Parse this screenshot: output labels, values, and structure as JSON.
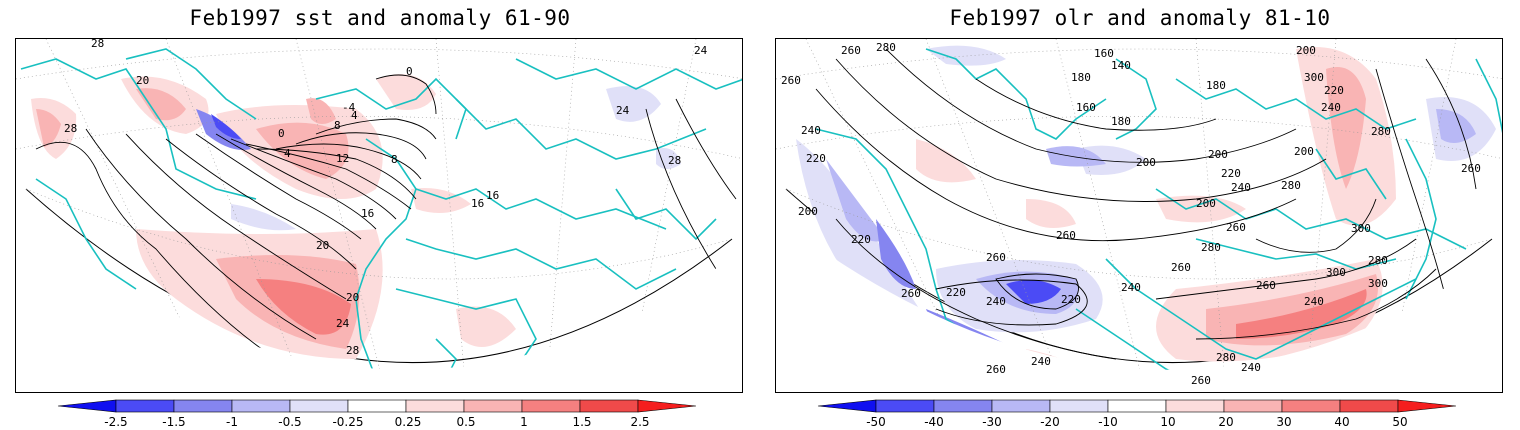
{
  "panels": [
    {
      "title": "Feb1997 sst and anomaly 61-90",
      "contour_labels": [
        "28",
        "28",
        "28",
        "24",
        "24",
        "20",
        "20",
        "20",
        "16",
        "16",
        "16",
        "12",
        "8",
        "8",
        "4",
        "4",
        "0",
        "0",
        "-4",
        "24",
        "28"
      ],
      "colorbar": {
        "ticks": [
          "-2.5",
          "-1.5",
          "-1",
          "-0.5",
          "-0.25",
          "0.25",
          "0.5",
          "1",
          "1.5",
          "2.5"
        ],
        "colors": [
          "#1010f0",
          "#4b4bf5",
          "#8585f0",
          "#b8b8f5",
          "#e0e0f8",
          "#ffffff",
          "#fcdcdc",
          "#f9b4b4",
          "#f58080",
          "#f04a4a",
          "#f51e1e"
        ]
      }
    },
    {
      "title": "Feb1997 olr and anomaly 81-10",
      "contour_labels": [
        "280",
        "260",
        "260",
        "200",
        "160",
        "140",
        "180",
        "180",
        "160",
        "180",
        "200",
        "200",
        "220",
        "240",
        "240",
        "280",
        "260",
        "300",
        "240",
        "220",
        "200",
        "220",
        "220",
        "240",
        "260",
        "260",
        "220",
        "240",
        "260",
        "200",
        "200",
        "220",
        "260",
        "280",
        "300",
        "280",
        "300",
        "300",
        "260",
        "280",
        "260",
        "240",
        "240",
        "260",
        "260",
        "280",
        "240"
      ],
      "colorbar": {
        "ticks": [
          "-50",
          "-40",
          "-30",
          "-20",
          "-10",
          "10",
          "20",
          "30",
          "40",
          "50"
        ],
        "colors": [
          "#1010f0",
          "#4b4bf5",
          "#8585f0",
          "#b8b8f5",
          "#e0e0f8",
          "#ffffff",
          "#fcdcdc",
          "#f9b4b4",
          "#f58080",
          "#f04a4a",
          "#f51e1e"
        ]
      }
    }
  ],
  "colors": {
    "coast": "#19c0c0",
    "contour": "#000000",
    "grid": "#999999"
  }
}
